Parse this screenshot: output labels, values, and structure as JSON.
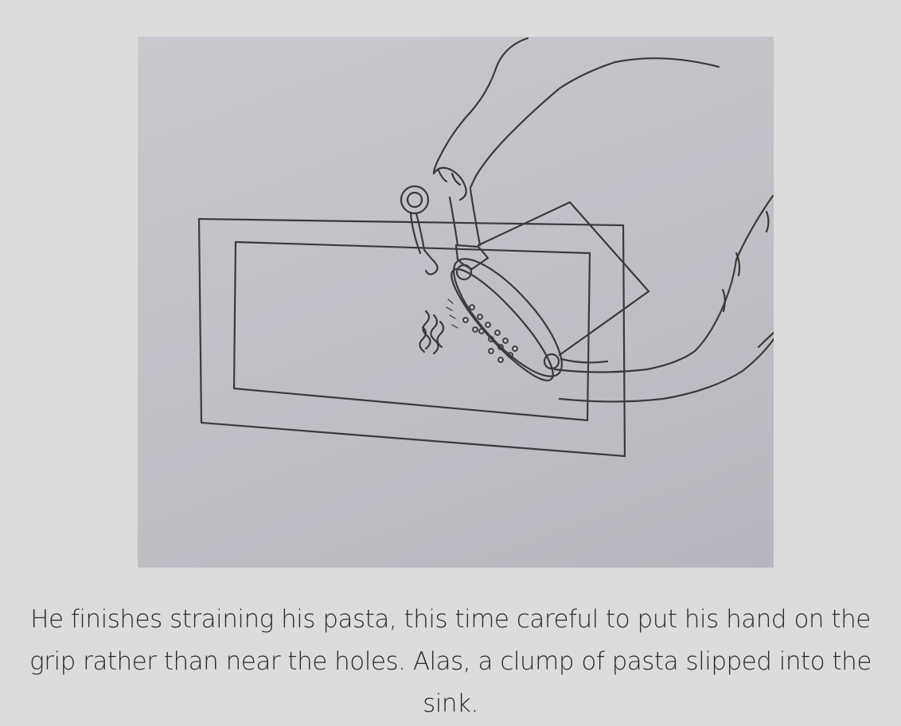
{
  "illustration": {
    "icon": "pencil-sketch-pasta-strainer-over-sink",
    "stroke_color": "#3a3a3a",
    "paper_color": "#c4c3ca"
  },
  "caption": {
    "text": "He finishes straining his pasta, this time careful to put his hand on the grip rather than near the holes. Alas, a clump of pasta slipped into the sink."
  },
  "colors": {
    "background": "#dcdcdc",
    "text": "#2a2a2a"
  }
}
